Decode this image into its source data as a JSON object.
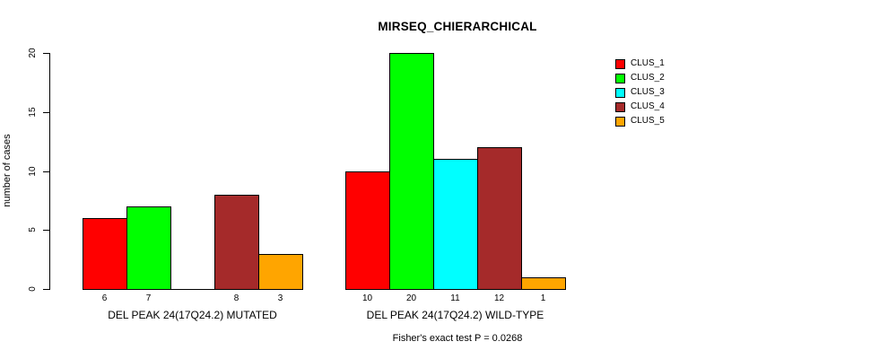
{
  "chart_data": {
    "type": "bar",
    "title": "MIRSEQ_CHIERARCHICAL",
    "ylabel": "number of cases",
    "xlabel": "",
    "ylim": [
      0,
      20
    ],
    "yticks": [
      0,
      5,
      10,
      15,
      20
    ],
    "groups": [
      "DEL PEAK 24(17Q24.2) MUTATED",
      "DEL PEAK 24(17Q24.2) WILD-TYPE"
    ],
    "series": [
      {
        "name": "CLUS_1",
        "color": "#ff0000",
        "values": [
          6,
          10
        ]
      },
      {
        "name": "CLUS_2",
        "color": "#00ff00",
        "values": [
          7,
          20
        ]
      },
      {
        "name": "CLUS_3",
        "color": "#00ffff",
        "values": [
          0,
          11
        ]
      },
      {
        "name": "CLUS_4",
        "color": "#a52a2a",
        "values": [
          8,
          12
        ]
      },
      {
        "name": "CLUS_5",
        "color": "#ffa500",
        "values": [
          3,
          1
        ]
      }
    ],
    "bar_value_labels_shown": true,
    "zero_value_labels_hidden": true,
    "annotation": "Fisher's exact test P = 0.0268",
    "legend_position": "top-right",
    "grid": false,
    "background_color": "#ffffff",
    "text_color": "#000000"
  }
}
